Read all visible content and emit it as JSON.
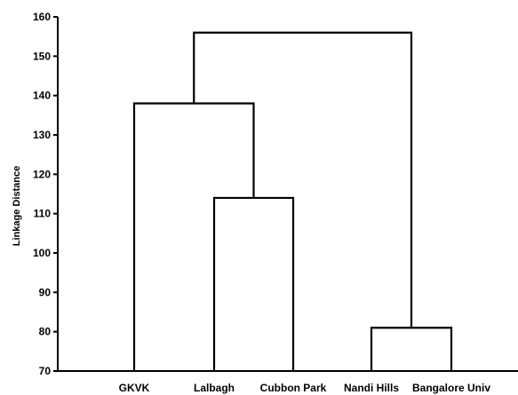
{
  "chart_data": {
    "type": "dendrogram",
    "ylabel": "Linkage Distance",
    "ylim": [
      70,
      160
    ],
    "yticks": [
      70,
      80,
      90,
      100,
      110,
      120,
      130,
      140,
      150,
      160
    ],
    "leaves": [
      "GKVK",
      "Lalbagh",
      "Cubbon Park",
      "Nandi Hills",
      "Bangalore Univ"
    ],
    "merges": [
      {
        "left": "Nandi Hills",
        "right": "Bangalore Univ",
        "height": 81
      },
      {
        "left": "Lalbagh",
        "right": "Cubbon Park",
        "height": 114
      },
      {
        "left": "GKVK",
        "right": "Lalbagh + Cubbon Park",
        "height": 138
      },
      {
        "left": "GKVK + Lalbagh + Cubbon Park",
        "right": "Nandi Hills + Bangalore Univ",
        "height": 156
      }
    ],
    "color": "#000000"
  }
}
